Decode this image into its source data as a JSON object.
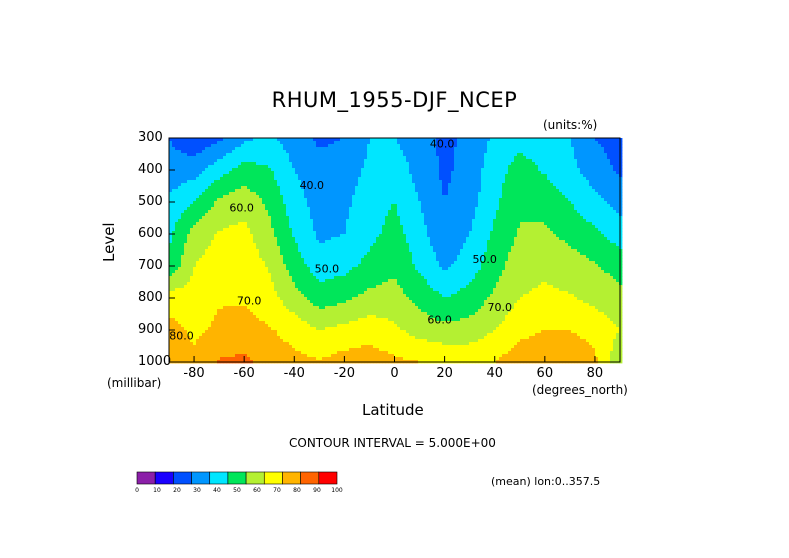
{
  "chart_data": {
    "type": "heatmap",
    "subtype": "filled-contour",
    "title": "RHUM_1955-DJF_NCEP",
    "units_label": "(units:%)",
    "ylabel": "Level",
    "y_units_label": "(millibar)",
    "xlabel": "Latitude",
    "x_units_label": "(degrees_north)",
    "xlim": [
      -90,
      90
    ],
    "ylim": [
      1000,
      300
    ],
    "x_ticks": [
      "-80",
      "-60",
      "-40",
      "-20",
      "0",
      "20",
      "40",
      "60",
      "80"
    ],
    "x_tick_values": [
      -80,
      -60,
      -40,
      -20,
      0,
      20,
      40,
      60,
      80
    ],
    "y_ticks": [
      "300",
      "400",
      "500",
      "600",
      "700",
      "800",
      "900",
      "1000"
    ],
    "y_tick_values": [
      300,
      400,
      500,
      600,
      700,
      800,
      900,
      1000
    ],
    "contour_interval_text": "CONTOUR INTERVAL = 5.000E+00",
    "contour_labels": [
      {
        "text": "40.0",
        "lat": 19,
        "lev": 330
      },
      {
        "text": "40.0",
        "lat": -33,
        "lev": 460
      },
      {
        "text": "60.0",
        "lat": -61,
        "lev": 530
      },
      {
        "text": "50.0",
        "lat": -27,
        "lev": 720
      },
      {
        "text": "50.0",
        "lat": 36,
        "lev": 690
      },
      {
        "text": "70.0",
        "lat": -58,
        "lev": 820
      },
      {
        "text": "60.0",
        "lat": 18,
        "lev": 880
      },
      {
        "text": "70.0",
        "lat": 42,
        "lev": 840
      },
      {
        "text": "80.0",
        "lat": -85,
        "lev": 930
      }
    ],
    "mean_note": "(mean) lon:0..357.5",
    "colorbar": {
      "levels": [
        0,
        10,
        20,
        30,
        40,
        50,
        60,
        70,
        80,
        90,
        100
      ],
      "labels": [
        "0",
        "10",
        "20",
        "30",
        "40",
        "50",
        "60",
        "70",
        "80",
        "90",
        "100"
      ],
      "colors": [
        "#8b1fa8",
        "#1a00ff",
        "#0050ff",
        "#0096ff",
        "#00e6ff",
        "#00e65a",
        "#b4f032",
        "#ffff00",
        "#ffb400",
        "#ff6400",
        "#ff0000"
      ]
    },
    "rh_profile": {
      "latitudes": [
        -90,
        -80,
        -70,
        -60,
        -50,
        -40,
        -30,
        -20,
        -10,
        0,
        10,
        20,
        30,
        40,
        50,
        60,
        70,
        80,
        90
      ],
      "levels": [
        300,
        400,
        500,
        600,
        700,
        800,
        900,
        1000
      ],
      "values": [
        [
          30,
          22,
          28,
          38,
          42,
          35,
          28,
          30,
          40,
          40,
          34,
          28,
          32,
          42,
          47,
          44,
          40,
          30,
          26
        ],
        [
          34,
          36,
          46,
          54,
          51,
          40,
          34,
          35,
          42,
          46,
          36,
          28,
          34,
          46,
          54,
          49,
          43,
          35,
          28
        ],
        [
          42,
          50,
          62,
          66,
          58,
          44,
          36,
          38,
          45,
          50,
          40,
          30,
          36,
          48,
          58,
          56,
          50,
          43,
          36
        ],
        [
          48,
          64,
          71,
          73,
          63,
          49,
          38,
          40,
          47,
          54,
          44,
          32,
          40,
          52,
          61,
          62,
          57,
          52,
          45
        ],
        [
          52,
          70,
          75,
          76,
          69,
          55,
          45,
          47,
          53,
          58,
          48,
          38,
          45,
          56,
          66,
          68,
          65,
          61,
          56
        ],
        [
          75,
          74,
          79,
          79,
          74,
          64,
          55,
          58,
          63,
          64,
          57,
          50,
          54,
          62,
          70,
          72,
          71,
          67,
          63
        ],
        [
          84,
          78,
          82,
          84,
          81,
          76,
          70,
          73,
          76,
          72,
          66,
          63,
          64,
          70,
          77,
          80,
          80,
          77,
          70
        ],
        [
          88,
          82,
          91,
          92,
          86,
          83,
          81,
          84,
          85,
          82,
          80,
          79,
          78,
          80,
          86,
          88,
          86,
          82,
          62
        ]
      ]
    }
  }
}
